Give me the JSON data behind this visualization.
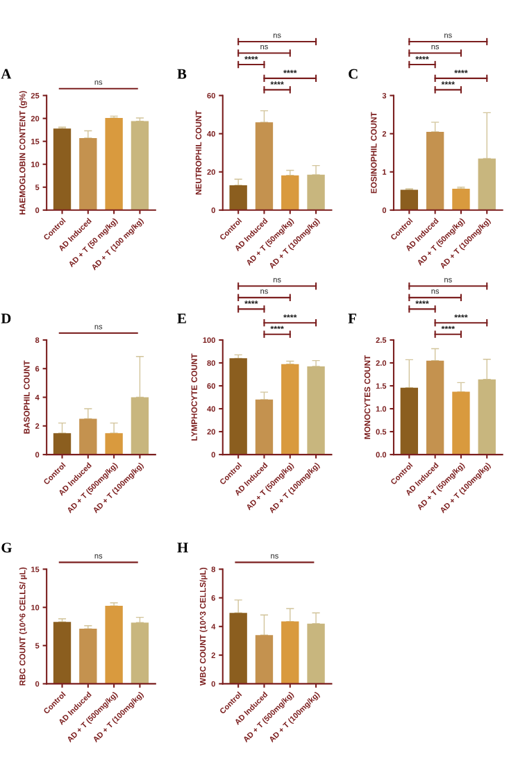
{
  "chart_data": [
    {
      "type": "bar",
      "title": "A",
      "ylabel": "HAEMOGLOBIN CONTENT (g%)",
      "categories": [
        "Control",
        "AD Induced",
        "AD + T (50 mg/kg)",
        "AD + T (100 mg/kg)"
      ],
      "values": [
        17.8,
        15.7,
        20.1,
        19.4
      ],
      "errors": [
        [
          17.8,
          18.1
        ],
        [
          15.7,
          17.3
        ],
        [
          20.1,
          20.5
        ],
        [
          19.4,
          20.1
        ]
      ],
      "colors": [
        "#8b5e1f",
        "#c4924f",
        "#d99a3e",
        "#c8b67e"
      ],
      "ylim": [
        0,
        25
      ],
      "yticks": [
        0,
        5,
        10,
        15,
        20,
        25
      ],
      "annotations": [
        "ns"
      ]
    },
    {
      "type": "bar",
      "title": "B",
      "ylabel": "NEUTROPHIL COUNT",
      "categories": [
        "Control",
        "AD Induced",
        "AD + T (50mg/kg)",
        "AD + T (100mg/kg)"
      ],
      "values": [
        13,
        46,
        18.2,
        18.5
      ],
      "errors": [
        [
          13,
          16.2
        ],
        [
          46,
          52
        ],
        [
          18.2,
          20.8
        ],
        [
          18.5,
          23.3
        ]
      ],
      "colors": [
        "#8b5e1f",
        "#c4924f",
        "#d99a3e",
        "#c8b67e"
      ],
      "ylim": [
        0,
        60
      ],
      "yticks": [
        0,
        20,
        40,
        60
      ],
      "annotations": [
        "****",
        "****",
        "****",
        "ns",
        "ns"
      ]
    },
    {
      "type": "bar",
      "title": "C",
      "ylabel": "EOSINOPHIL COUNT",
      "categories": [
        "Control",
        "AD Induced",
        "AD + T (50mg/kg)",
        "AD + T (100mg/kg)"
      ],
      "values": [
        0.53,
        2.05,
        0.56,
        1.35
      ],
      "errors": [
        [
          0.53,
          0.56
        ],
        [
          2.05,
          2.3
        ],
        [
          0.56,
          0.6
        ],
        [
          1.35,
          2.55
        ]
      ],
      "colors": [
        "#8b5e1f",
        "#c4924f",
        "#d99a3e",
        "#c8b67e"
      ],
      "ylim": [
        0,
        3
      ],
      "yticks": [
        0,
        1,
        2,
        3
      ],
      "annotations": [
        "****",
        "****",
        "****",
        "ns",
        "ns"
      ]
    },
    {
      "type": "bar",
      "title": "D",
      "ylabel": "BASOPHIL COUNT",
      "categories": [
        "Control",
        "AD Induced",
        "AD + T (500mg/kg)",
        "AD + T (100mg/kg)"
      ],
      "values": [
        1.5,
        2.5,
        1.5,
        4.0
      ],
      "errors": [
        [
          1.5,
          2.2
        ],
        [
          2.5,
          3.2
        ],
        [
          1.5,
          2.2
        ],
        [
          4.0,
          6.85
        ]
      ],
      "colors": [
        "#8b5e1f",
        "#c4924f",
        "#d99a3e",
        "#c8b67e"
      ],
      "ylim": [
        0,
        8
      ],
      "yticks": [
        0,
        2,
        4,
        6,
        8
      ],
      "annotations": [
        "ns"
      ]
    },
    {
      "type": "bar",
      "title": "E",
      "ylabel": "LYMPHOCYTE COUNT",
      "categories": [
        "Control",
        "AD Induced",
        "AD + T (50mg/kg)",
        "AD + T (100mg/kg)"
      ],
      "values": [
        84,
        48,
        79,
        77
      ],
      "errors": [
        [
          84,
          87
        ],
        [
          48,
          54.5
        ],
        [
          79,
          81.5
        ],
        [
          77,
          82
        ]
      ],
      "colors": [
        "#8b5e1f",
        "#c4924f",
        "#d99a3e",
        "#c8b67e"
      ],
      "ylim": [
        0,
        100
      ],
      "yticks": [
        0,
        20,
        40,
        60,
        80,
        100
      ],
      "annotations": [
        "****",
        "****",
        "****",
        "ns",
        "ns"
      ]
    },
    {
      "type": "bar",
      "title": "F",
      "ylabel": "MONOCYTES COUNT",
      "categories": [
        "Control",
        "AD Induced",
        "AD + T (50mg/kg)",
        "AD + T (100mg/kg)"
      ],
      "values": [
        1.46,
        2.05,
        1.37,
        1.64
      ],
      "errors": [
        [
          1.46,
          2.07
        ],
        [
          2.05,
          2.31
        ],
        [
          1.37,
          1.57
        ],
        [
          1.64,
          2.08
        ]
      ],
      "colors": [
        "#8b5e1f",
        "#c4924f",
        "#d99a3e",
        "#c8b67e"
      ],
      "ylim": [
        0,
        2.5
      ],
      "yticks": [
        {
          "value": 0,
          "label": "0.0"
        },
        {
          "value": 0.5,
          "label": "0.5"
        },
        {
          "value": 1,
          "label": "1.0"
        },
        {
          "value": 1.5,
          "label": "1.5"
        },
        {
          "value": 2,
          "label": "2.0"
        },
        {
          "value": 2.5,
          "label": "2.5"
        }
      ],
      "annotations": [
        "****",
        "****",
        "****",
        "ns",
        "ns"
      ]
    },
    {
      "type": "bar",
      "title": "G",
      "ylabel": "RBC COUNT (10^6 CELLS/ µL)",
      "categories": [
        "Control",
        "AD Induced",
        "AD + T (500mg/kg)",
        "AD + T (100mg/kg)"
      ],
      "values": [
        8.1,
        7.2,
        10.2,
        8.0
      ],
      "errors": [
        [
          8.1,
          8.5
        ],
        [
          7.2,
          7.6
        ],
        [
          10.2,
          10.6
        ],
        [
          8.0,
          8.7
        ]
      ],
      "colors": [
        "#8b5e1f",
        "#c4924f",
        "#d99a3e",
        "#c8b67e"
      ],
      "ylim": [
        0,
        15
      ],
      "yticks": [
        0,
        5,
        10,
        15
      ],
      "annotations": [
        "ns"
      ]
    },
    {
      "type": "bar",
      "title": "H",
      "ylabel": "WBC COUNT (10^3 CELLS/µL)",
      "categories": [
        "Control",
        "AD Induced",
        "AD + T (500mg/kg)",
        "AD + T (100mg/kg)"
      ],
      "values": [
        4.95,
        3.4,
        4.35,
        4.2
      ],
      "errors": [
        [
          4.95,
          5.85
        ],
        [
          3.4,
          4.8
        ],
        [
          4.35,
          5.25
        ],
        [
          4.2,
          4.95
        ]
      ],
      "colors": [
        "#8b5e1f",
        "#c4924f",
        "#d99a3e",
        "#c8b67e"
      ],
      "ylim": [
        0,
        8
      ],
      "yticks": [
        0,
        2,
        4,
        6,
        8
      ],
      "annotations": [
        "ns"
      ]
    }
  ]
}
